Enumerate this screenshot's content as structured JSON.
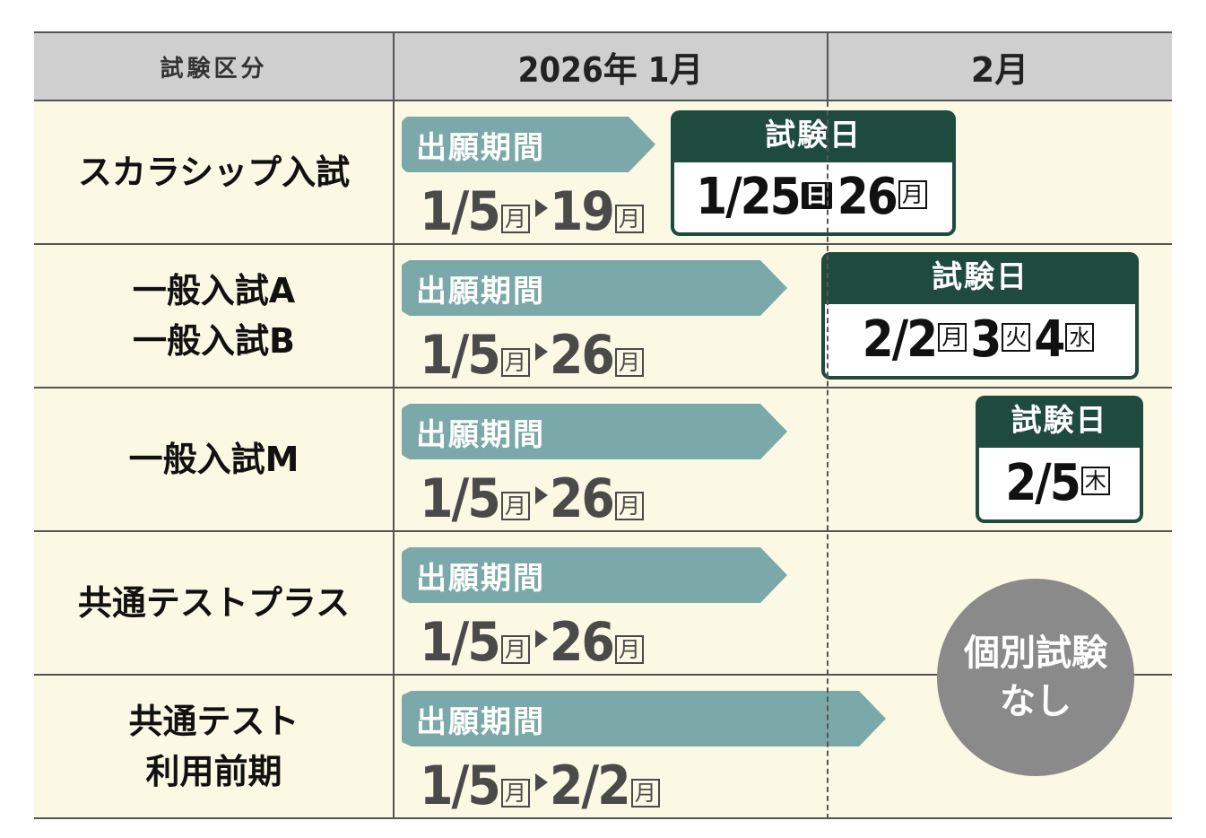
{
  "header": {
    "category": "試験区分",
    "jan": "2026年 1月",
    "feb": "2月"
  },
  "labels": {
    "application_period": "出願期間",
    "exam_day": "試験日",
    "no_exam": [
      "個別試験",
      "なし"
    ]
  },
  "rows": [
    {
      "name": [
        "スカラシップ入試"
      ],
      "start": "1/5",
      "start_day": "月",
      "end": "19",
      "end_day": "月"
    },
    {
      "name": [
        "一般入試A",
        "一般入試B"
      ],
      "start": "1/5",
      "start_day": "月",
      "end": "26",
      "end_day": "月"
    },
    {
      "name": [
        "一般入試M"
      ],
      "start": "1/5",
      "start_day": "月",
      "end": "26",
      "end_day": "月"
    },
    {
      "name": [
        "共通テストプラス"
      ],
      "start": "1/5",
      "start_day": "月",
      "end": "26",
      "end_day": "月"
    },
    {
      "name": [
        "共通テスト",
        "利用前期"
      ],
      "start": "1/5",
      "start_day": "月",
      "end": "2/2",
      "end_day": "月"
    }
  ],
  "exams": [
    {
      "d1": "1/25",
      "d1_day": "日",
      "d2": "26",
      "d2_day": "月"
    },
    {
      "d1": "2/2",
      "d1_day": "月",
      "d2": "3",
      "d2_day": "火",
      "d3": "4",
      "d3_day": "水"
    },
    {
      "d1": "2/5",
      "d1_day": "木"
    }
  ],
  "colors": {
    "arrow": "#7ba9a9",
    "exam": "#1f4a3e",
    "row_bg": "#fbf8e3",
    "header_bg": "#cfcfcf",
    "circle": "#8a8a8a"
  }
}
